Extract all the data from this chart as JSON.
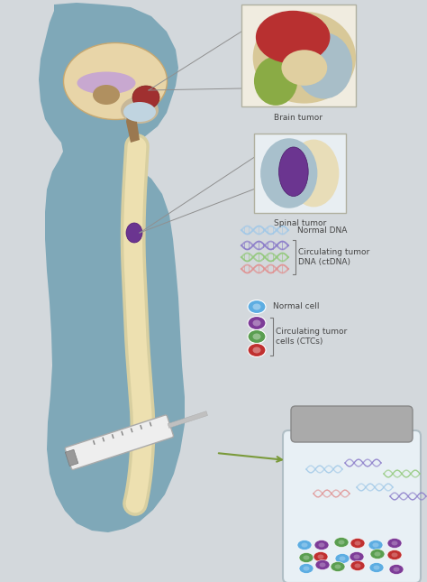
{
  "bg_color": "#d3d8dc",
  "fig_width": 4.74,
  "fig_height": 6.45,
  "dpi": 100,
  "body_color": "#7fa8b8",
  "spine_color": "#f5f0d8",
  "spine_inner": "#ede0b0",
  "brain_outer": "#e8d5a8",
  "brain_gyri": "#d4b888",
  "brain_corpus": "#c8a8d0",
  "brain_thalamus": "#b09060",
  "brain_cerebellum": "#d0c0a0",
  "brain_stem": "#8a6845",
  "tumor_brain_color": "#a03030",
  "tumor_spinal_color": "#6b3590",
  "box_brain_bg": "#f0ece0",
  "box_spinal_bg": "#e8eef2",
  "box_border": "#b0b0a0",
  "dna_colors": [
    "#a0c8e8",
    "#8878c8",
    "#90c878",
    "#e09090"
  ],
  "cell_normal_color": "#5dade2",
  "cell_ctc_colors": [
    "#7d3c98",
    "#5a9e50",
    "#c03030"
  ],
  "labels": {
    "brain_tumor": "Brain tumor",
    "spinal_tumor": "Spinal tumor",
    "normal_dna": "Normal DNA",
    "ctdna": "Circulating tumor\nDNA (ctDNA)",
    "normal_cell": "Normal cell",
    "ctcs": "Circulating tumor\ncells (CTCs)"
  },
  "text_color": "#444444",
  "font_size_label": 6.5,
  "arrow_color": "#7a9a3a",
  "vial_bg": "#e8f0f5",
  "vial_cap_color": "#999999",
  "line_color": "#909090"
}
